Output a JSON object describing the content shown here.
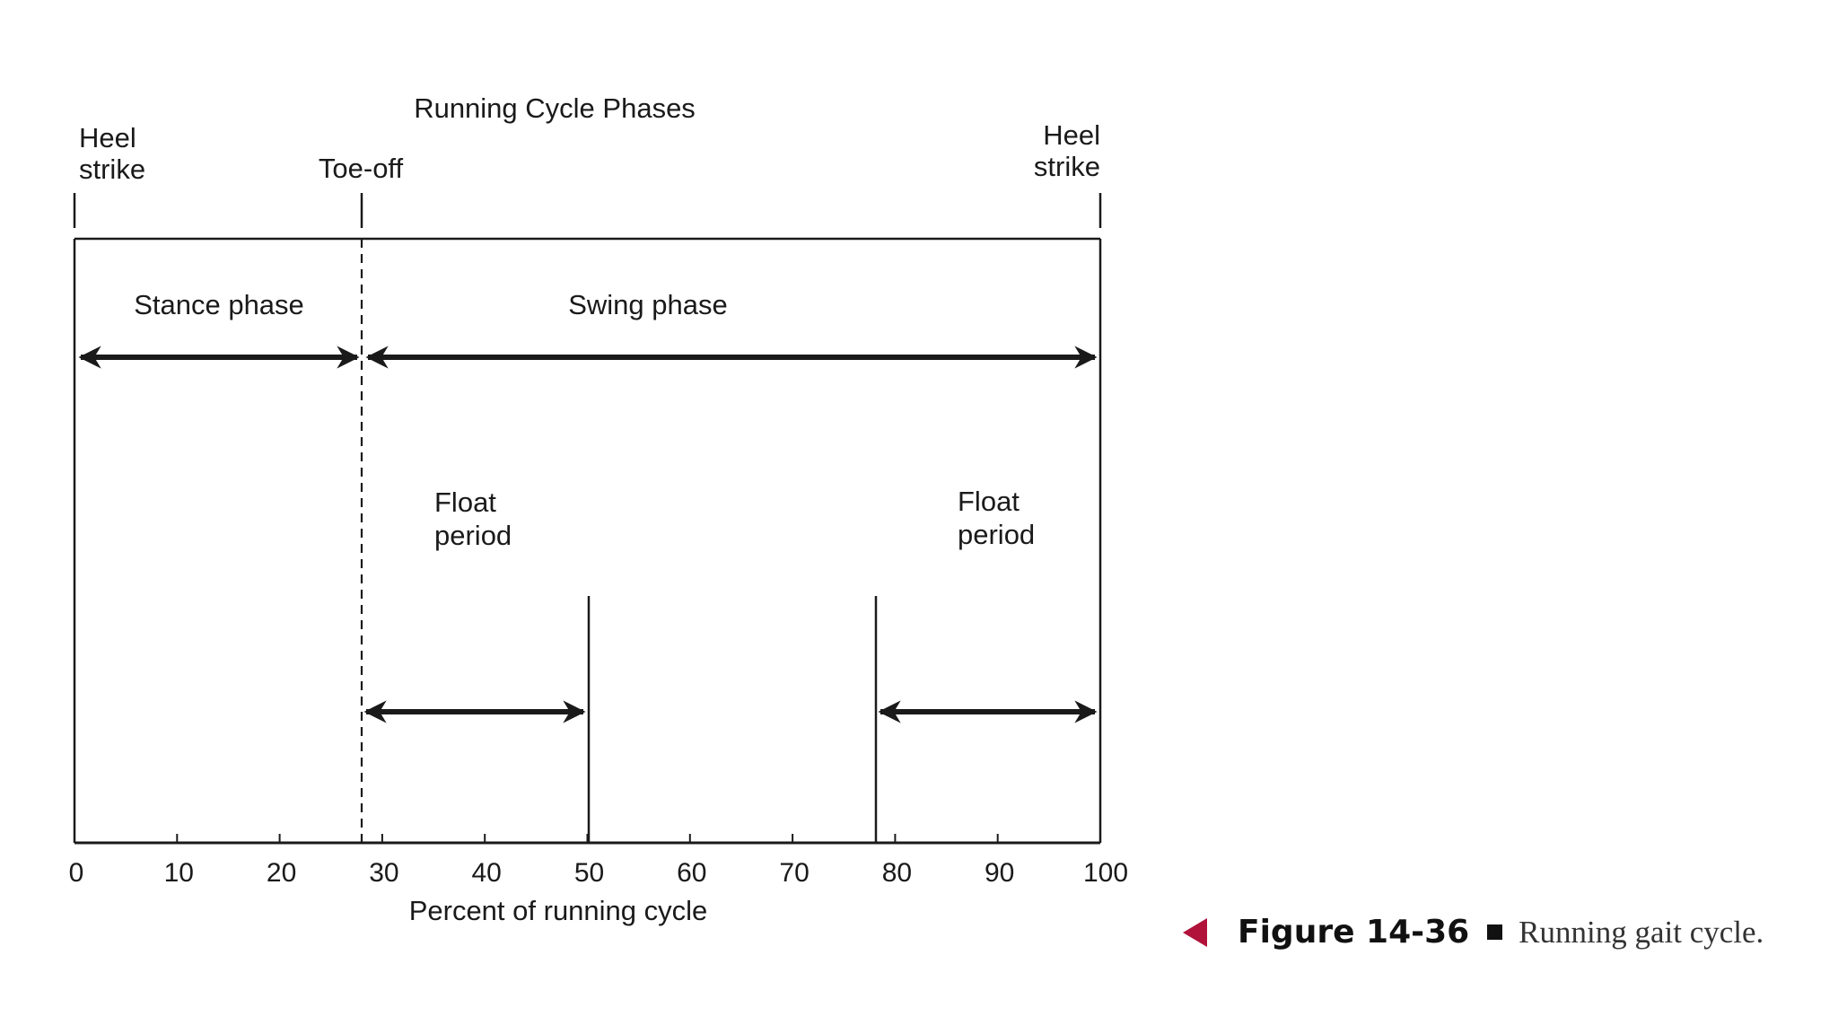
{
  "diagram": {
    "title": "Running Cycle Phases",
    "xlabel": "Percent of running cycle",
    "x_ticks": [
      "0",
      "10",
      "20",
      "30",
      "40",
      "50",
      "60",
      "70",
      "80",
      "90",
      "100"
    ],
    "x_range": [
      0,
      100
    ],
    "markers": [
      {
        "label_line1": "Heel",
        "label_line2": "strike",
        "percent": 0
      },
      {
        "label_line1": "Toe-off",
        "label_line2": "",
        "percent": 28
      },
      {
        "label_line1": "Heel",
        "label_line2": "strike",
        "percent": 100
      }
    ],
    "phases": [
      {
        "label": "Stance phase",
        "start": 0,
        "end": 28
      },
      {
        "label": "Swing phase",
        "start": 28,
        "end": 100
      }
    ],
    "float_periods": [
      {
        "label_line1": "Float",
        "label_line2": "period",
        "start": 28,
        "end": 50
      },
      {
        "label_line1": "Float",
        "label_line2": "period",
        "start": 78,
        "end": 100
      }
    ]
  },
  "caption": {
    "label": "Figure 14-36",
    "text": "Running gait cycle."
  },
  "colors": {
    "ink": "#1a1a1a",
    "caption_arrow": "#b0123a"
  }
}
